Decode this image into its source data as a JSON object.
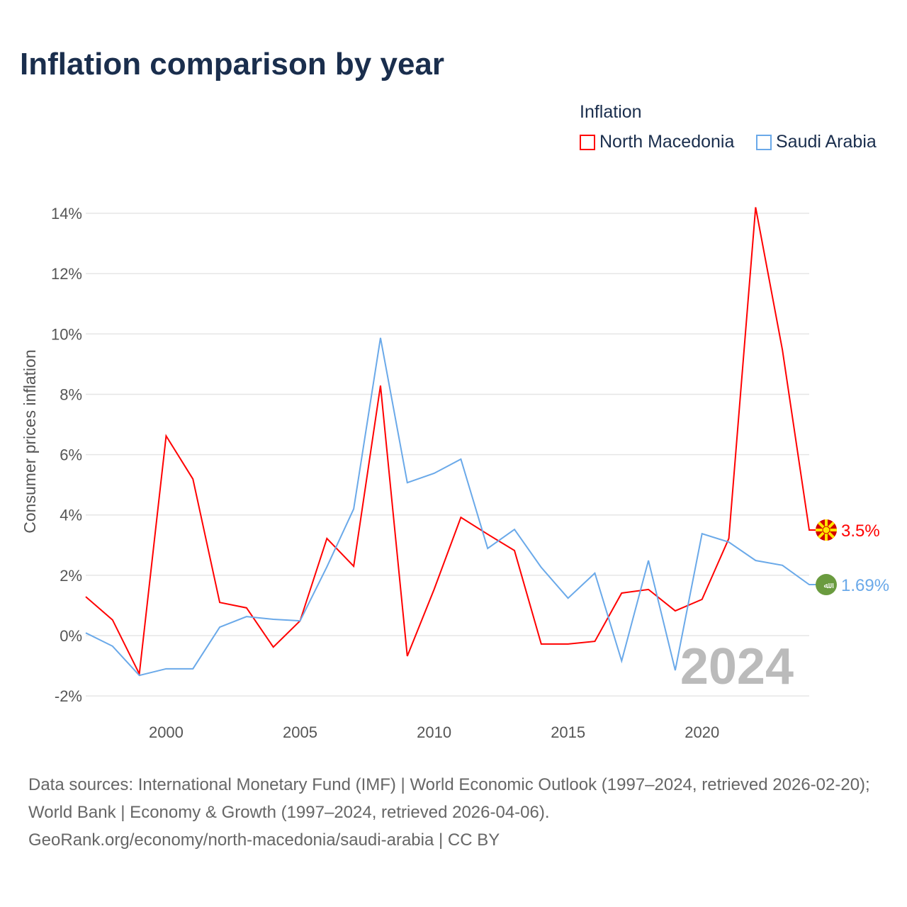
{
  "title": "Inflation comparison by year",
  "legend": {
    "title": "Inflation"
  },
  "watermark_year": "2024",
  "footer": {
    "sources": "Data sources: International Monetary Fund (IMF) | World Economic Outlook (1997–2024, retrieved 2026-02-20); World Bank | Economy & Growth (1997–2024, retrieved 2026-04-06).",
    "credit": "GeoRank.org/economy/north-macedonia/saudi-arabia | CC BY"
  },
  "chart_data": {
    "type": "line",
    "title": "Inflation comparison by year",
    "xlabel": "",
    "ylabel": "Consumer prices inflation",
    "xlim": [
      1997,
      2024
    ],
    "ylim": [
      -2.5,
      14.5
    ],
    "x_ticks": [
      2000,
      2005,
      2010,
      2015,
      2020
    ],
    "y_ticks": [
      -2,
      0,
      2,
      4,
      6,
      8,
      10,
      12,
      14
    ],
    "y_tick_labels": [
      "-2%",
      "0%",
      "2%",
      "4%",
      "6%",
      "8%",
      "10%",
      "12%",
      "14%"
    ],
    "grid": true,
    "legend_position": "top-right",
    "x": [
      1997,
      1998,
      1999,
      2000,
      2001,
      2002,
      2003,
      2004,
      2005,
      2006,
      2007,
      2008,
      2009,
      2010,
      2011,
      2012,
      2013,
      2014,
      2015,
      2016,
      2017,
      2018,
      2019,
      2020,
      2021,
      2022,
      2023,
      2024
    ],
    "series": [
      {
        "name": "North Macedonia",
        "color": "#ff0000",
        "end_label": "3.5%",
        "values": [
          1.29,
          0.52,
          -1.27,
          6.62,
          5.19,
          1.1,
          0.92,
          -0.38,
          0.49,
          3.22,
          2.3,
          8.29,
          -0.68,
          1.53,
          3.92,
          3.36,
          2.82,
          -0.28,
          -0.28,
          -0.19,
          1.41,
          1.53,
          0.82,
          1.2,
          3.22,
          14.2,
          9.47,
          3.5
        ]
      },
      {
        "name": "Saudi Arabia",
        "color": "#6aa9e9",
        "end_label": "1.69%",
        "values": [
          0.09,
          -0.35,
          -1.32,
          -1.1,
          -1.1,
          0.28,
          0.63,
          0.54,
          0.49,
          2.28,
          4.2,
          9.87,
          5.07,
          5.38,
          5.85,
          2.89,
          3.52,
          2.26,
          1.24,
          2.07,
          -0.84,
          2.49,
          -1.15,
          3.38,
          3.1,
          2.49,
          2.33,
          1.69
        ]
      }
    ]
  }
}
